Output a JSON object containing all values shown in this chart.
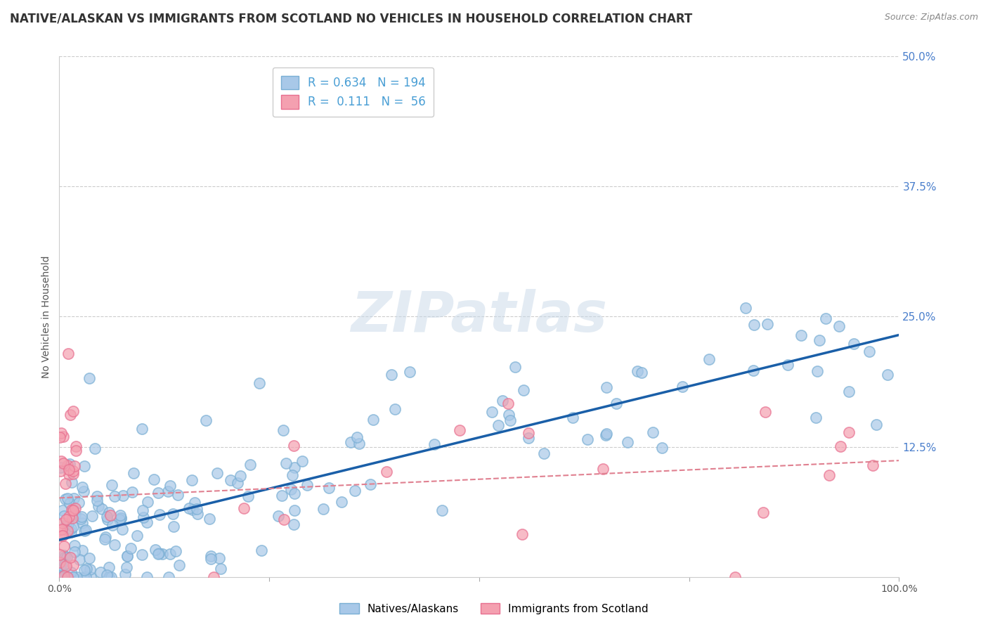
{
  "title": "NATIVE/ALASKAN VS IMMIGRANTS FROM SCOTLAND NO VEHICLES IN HOUSEHOLD CORRELATION CHART",
  "source": "Source: ZipAtlas.com",
  "ylabel": "No Vehicles in Household",
  "xlim": [
    0,
    100
  ],
  "ylim": [
    0,
    50
  ],
  "blue_R": 0.634,
  "blue_N": 194,
  "pink_R": 0.111,
  "pink_N": 56,
  "blue_color": "#a8c8e8",
  "blue_edge_color": "#7aafd4",
  "pink_color": "#f4a0b0",
  "pink_edge_color": "#e87090",
  "blue_line_color": "#1a5fa8",
  "pink_line_color": "#e08090",
  "title_fontsize": 12,
  "source_fontsize": 9,
  "ytick_color": "#4a7fcc",
  "blue_seed": 42,
  "pink_seed": 99,
  "legend_label_color": "#4a9fd5"
}
